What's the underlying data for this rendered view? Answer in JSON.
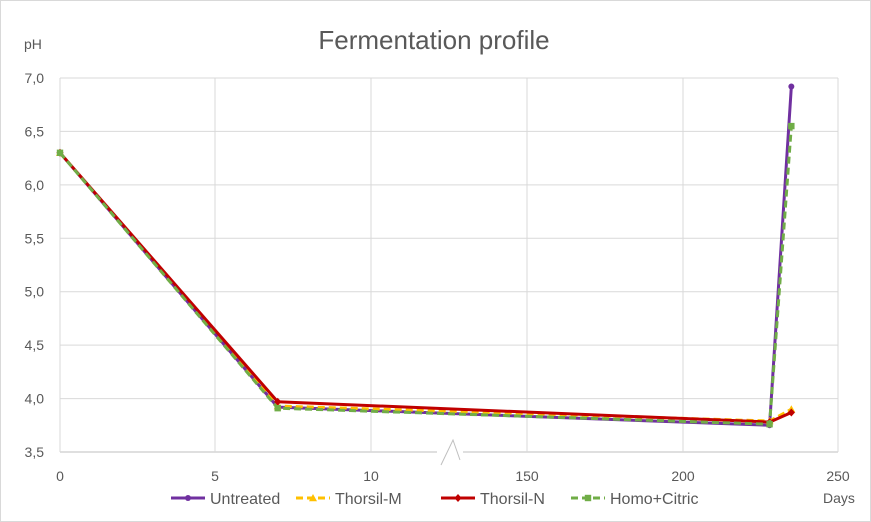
{
  "chart_data": {
    "type": "line",
    "title": "Fermentation profile",
    "xlabel": "Days",
    "ylabel": "pH",
    "x": [
      0,
      7,
      228,
      235
    ],
    "x_axis_break": true,
    "x_tick_labels": [
      "0",
      "5",
      "10",
      "150",
      "200",
      "250"
    ],
    "y_tick_labels": [
      "3,5",
      "4,0",
      "4,5",
      "5,0",
      "5,5",
      "6,0",
      "6,5",
      "7,0"
    ],
    "ylim": [
      3.5,
      7.0
    ],
    "grid": true,
    "legend_position": "bottom",
    "series": [
      {
        "name": "Untreated",
        "color": "#7030A0",
        "dash": "solid",
        "marker": "circle",
        "values": [
          6.3,
          3.92,
          3.75,
          6.92
        ]
      },
      {
        "name": "Thorsil-M",
        "color": "#FFC000",
        "dash": "dashed",
        "marker": "triangle",
        "values": [
          6.3,
          3.93,
          3.79,
          3.9
        ]
      },
      {
        "name": "Thorsil-N",
        "color": "#C00000",
        "dash": "solid",
        "marker": "diamond",
        "values": [
          6.3,
          3.97,
          3.78,
          3.87
        ]
      },
      {
        "name": "Homo+Citric",
        "color": "#70AD47",
        "dash": "dashed",
        "marker": "square",
        "values": [
          6.3,
          3.91,
          3.76,
          6.55
        ]
      }
    ]
  }
}
